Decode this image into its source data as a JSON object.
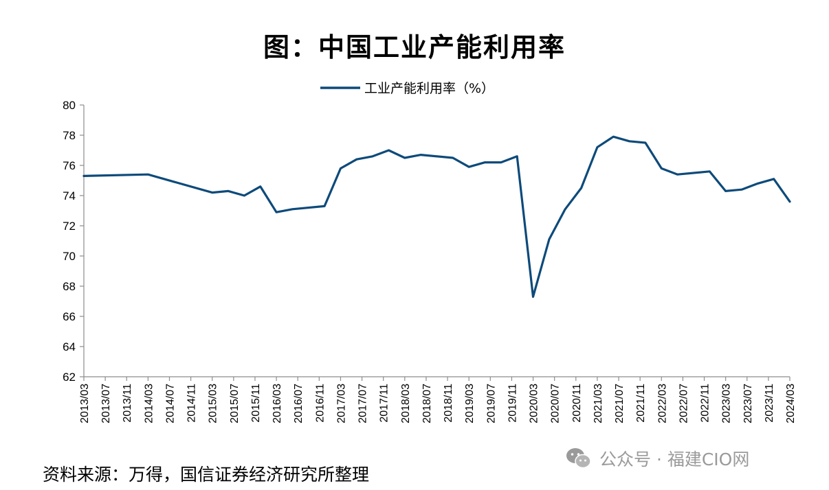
{
  "title": "图：中国工业产能利用率",
  "source": "资料来源：万得，国信证券经济研究所整理",
  "watermark": "公众号 · 福建CIO网",
  "colors": {
    "line": "#0d4a7a",
    "axis": "#8c8c8c",
    "watermark": "#9a9a9a"
  },
  "chart_data": {
    "type": "line",
    "legend_position": "top-center",
    "grid": false,
    "ylim": [
      62,
      80
    ],
    "y_ticks": [
      62,
      64,
      66,
      68,
      70,
      72,
      74,
      76,
      78,
      80
    ],
    "x_tick_labels": [
      "2013/03",
      "2013/07",
      "2013/11",
      "2014/03",
      "2014/07",
      "2014/11",
      "2015/03",
      "2015/07",
      "2015/11",
      "2016/03",
      "2016/07",
      "2016/11",
      "2017/03",
      "2017/07",
      "2017/11",
      "2018/03",
      "2018/07",
      "2018/11",
      "2019/03",
      "2019/07",
      "2019/11",
      "2020/03",
      "2020/07",
      "2020/11",
      "2021/03",
      "2021/07",
      "2021/11",
      "2022/03",
      "2022/07",
      "2022/11",
      "2023/03",
      "2023/07",
      "2023/11",
      "2024/03"
    ],
    "series": [
      {
        "name": "工业产能利用率（%）",
        "points": [
          [
            "2013/03",
            75.3
          ],
          [
            "2014/03",
            75.4
          ],
          [
            "2015/03",
            74.2
          ],
          [
            "2015/06",
            74.3
          ],
          [
            "2015/09",
            74.0
          ],
          [
            "2015/12",
            74.6
          ],
          [
            "2016/03",
            72.9
          ],
          [
            "2016/06",
            73.1
          ],
          [
            "2016/12",
            73.3
          ],
          [
            "2017/03",
            75.8
          ],
          [
            "2017/06",
            76.4
          ],
          [
            "2017/09",
            76.6
          ],
          [
            "2017/12",
            77.0
          ],
          [
            "2018/03",
            76.5
          ],
          [
            "2018/06",
            76.7
          ],
          [
            "2018/12",
            76.5
          ],
          [
            "2019/03",
            75.9
          ],
          [
            "2019/06",
            76.2
          ],
          [
            "2019/09",
            76.2
          ],
          [
            "2019/12",
            76.6
          ],
          [
            "2020/03",
            67.3
          ],
          [
            "2020/06",
            71.1
          ],
          [
            "2020/09",
            73.1
          ],
          [
            "2020/12",
            74.5
          ],
          [
            "2021/03",
            77.2
          ],
          [
            "2021/06",
            77.9
          ],
          [
            "2021/09",
            77.6
          ],
          [
            "2021/12",
            77.5
          ],
          [
            "2022/03",
            75.8
          ],
          [
            "2022/06",
            75.4
          ],
          [
            "2022/12",
            75.6
          ],
          [
            "2023/03",
            74.3
          ],
          [
            "2023/06",
            74.4
          ],
          [
            "2023/09",
            74.8
          ],
          [
            "2023/12",
            75.1
          ],
          [
            "2024/03",
            73.6
          ]
        ]
      }
    ]
  }
}
